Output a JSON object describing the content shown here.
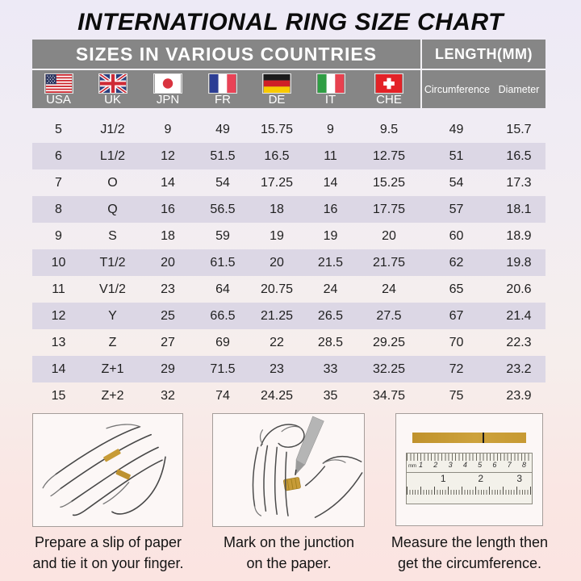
{
  "title": "INTERNATIONAL RING SIZE CHART",
  "header": {
    "countries_label": "SIZES IN VARIOUS COUNTRIES",
    "length_label": "LENGTH(MM)",
    "countries": [
      "USA",
      "UK",
      "JPN",
      "FR",
      "DE",
      "IT",
      "CHE"
    ],
    "length_columns": [
      "Circumference",
      "Diameter"
    ]
  },
  "chart_data": {
    "type": "table",
    "title": "INTERNATIONAL RING SIZE CHART",
    "column_groups": [
      "SIZES IN VARIOUS COUNTRIES",
      "LENGTH(MM)"
    ],
    "columns": [
      "USA",
      "UK",
      "JPN",
      "FR",
      "DE",
      "IT",
      "CHE",
      "Circumference",
      "Diameter"
    ],
    "rows": [
      [
        "5",
        "J1/2",
        "9",
        "49",
        "15.75",
        "9",
        "9.5",
        "49",
        "15.7"
      ],
      [
        "6",
        "L1/2",
        "12",
        "51.5",
        "16.5",
        "11",
        "12.75",
        "51",
        "16.5"
      ],
      [
        "7",
        "O",
        "14",
        "54",
        "17.25",
        "14",
        "15.25",
        "54",
        "17.3"
      ],
      [
        "8",
        "Q",
        "16",
        "56.5",
        "18",
        "16",
        "17.75",
        "57",
        "18.1"
      ],
      [
        "9",
        "S",
        "18",
        "59",
        "19",
        "19",
        "20",
        "60",
        "18.9"
      ],
      [
        "10",
        "T1/2",
        "20",
        "61.5",
        "20",
        "21.5",
        "21.75",
        "62",
        "19.8"
      ],
      [
        "11",
        "V1/2",
        "23",
        "64",
        "20.75",
        "24",
        "24",
        "65",
        "20.6"
      ],
      [
        "12",
        "Y",
        "25",
        "66.5",
        "21.25",
        "26.5",
        "27.5",
        "67",
        "21.4"
      ],
      [
        "13",
        "Z",
        "27",
        "69",
        "22",
        "28.5",
        "29.25",
        "70",
        "22.3"
      ],
      [
        "14",
        "Z+1",
        "29",
        "71.5",
        "23",
        "33",
        "32.25",
        "72",
        "23.2"
      ],
      [
        "15",
        "Z+2",
        "32",
        "74",
        "24.25",
        "35",
        "34.75",
        "75",
        "23.9"
      ]
    ]
  },
  "instructions": [
    {
      "line1": "Prepare a slip of paper",
      "line2": "and tie it on your finger."
    },
    {
      "line1": "Mark on the junction",
      "line2": "on the paper."
    },
    {
      "line1": "Measure the length then",
      "line2": "get the circumference."
    }
  ],
  "ruler": {
    "unit": "mm",
    "top_numbers": [
      "1",
      "2",
      "3",
      "4",
      "5",
      "6",
      "7",
      "8"
    ],
    "bottom_numbers": [
      "1",
      "2",
      "3"
    ]
  },
  "colors": {
    "header_bg": "#868686",
    "alt_row_bg": "#dcd7e5",
    "gold_strip": "#c79b37",
    "bg_top": "#edeaf6",
    "bg_bottom": "#fbe4e1"
  }
}
